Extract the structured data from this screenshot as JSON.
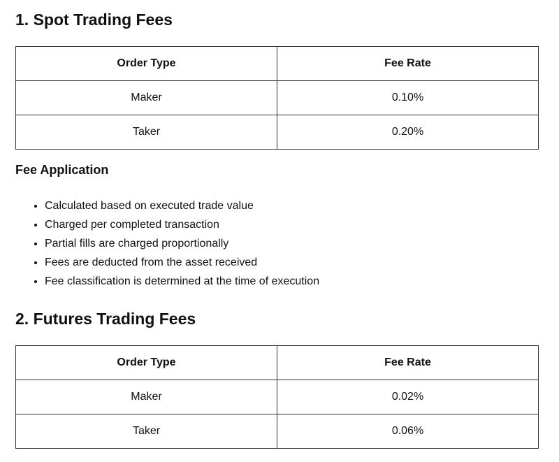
{
  "sections": [
    {
      "title": "1. Spot Trading Fees",
      "table": {
        "header": [
          "Order Type",
          "Fee Rate"
        ],
        "rows": [
          [
            "Maker",
            "0.10%"
          ],
          [
            "Taker",
            "0.20%"
          ]
        ]
      },
      "subsection": {
        "title": "Fee Application",
        "items": [
          "Calculated based on executed trade value",
          "Charged per completed transaction",
          "Partial fills are charged proportionally",
          "Fees are deducted from the asset received",
          "Fee classification is determined at the time of execution"
        ]
      }
    },
    {
      "title": "2. Futures Trading Fees",
      "table": {
        "header": [
          "Order Type",
          "Fee Rate"
        ],
        "rows": [
          [
            "Maker",
            "0.02%"
          ],
          [
            "Taker",
            "0.06%"
          ]
        ]
      }
    }
  ]
}
